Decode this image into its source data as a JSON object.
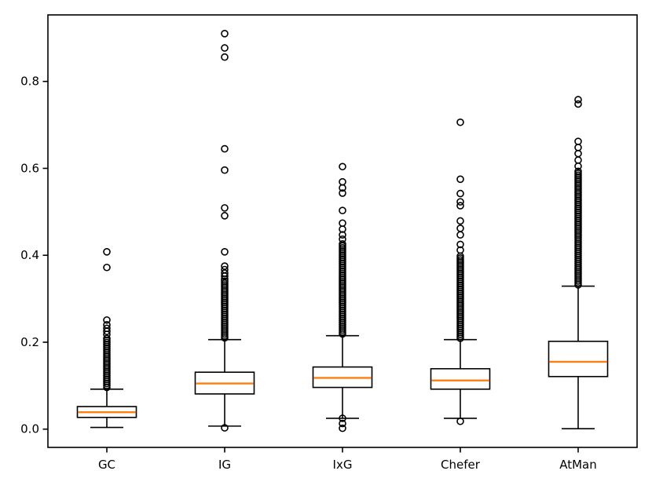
{
  "figure": {
    "background": "#ffffff",
    "line_color": "#000000",
    "median_color": "#ff7f0e",
    "box_fill": "#ffffff"
  },
  "chart_data": {
    "type": "boxplot",
    "categories": [
      "GC",
      "IG",
      "IxG",
      "Chefer",
      "AtMan"
    ],
    "y_ticks": [
      0.0,
      0.2,
      0.4,
      0.6,
      0.8
    ],
    "y_tick_labels": [
      "0.0",
      "0.2",
      "0.4",
      "0.6",
      "0.8"
    ],
    "ylim": [
      -0.042,
      0.953
    ],
    "grid": false,
    "legend": "none",
    "xlabel": "",
    "ylabel": "",
    "series": [
      {
        "name": "GC",
        "whisker_low": 0.004,
        "q1": 0.027,
        "median": 0.039,
        "q3": 0.052,
        "whisker_high": 0.092,
        "outliers_dense": {
          "from": 0.096,
          "to": 0.21,
          "step": 0.0045
        },
        "outliers_high": [
          0.218,
          0.225,
          0.232,
          0.24,
          0.251,
          0.372,
          0.408
        ],
        "outliers_low": []
      },
      {
        "name": "IG",
        "whisker_low": 0.007,
        "q1": 0.081,
        "median": 0.105,
        "q3": 0.131,
        "whisker_high": 0.206,
        "outliers_dense": {
          "from": 0.21,
          "to": 0.345,
          "step": 0.0045
        },
        "outliers_high": [
          0.352,
          0.359,
          0.367,
          0.375,
          0.408,
          0.491,
          0.509,
          0.596,
          0.645,
          0.856,
          0.877,
          0.91
        ],
        "outliers_low": [
          0.003
        ]
      },
      {
        "name": "IxG",
        "whisker_low": 0.025,
        "q1": 0.096,
        "median": 0.118,
        "q3": 0.143,
        "whisker_high": 0.215,
        "outliers_dense": {
          "from": 0.219,
          "to": 0.428,
          "step": 0.0045
        },
        "outliers_high": [
          0.437,
          0.447,
          0.46,
          0.474,
          0.503,
          0.543,
          0.555,
          0.569,
          0.604
        ],
        "outliers_low": [
          0.025,
          0.013,
          0.002
        ]
      },
      {
        "name": "Chefer",
        "whisker_low": 0.025,
        "q1": 0.092,
        "median": 0.112,
        "q3": 0.139,
        "whisker_high": 0.206,
        "outliers_dense": {
          "from": 0.209,
          "to": 0.4,
          "step": 0.0045
        },
        "outliers_high": [
          0.412,
          0.425,
          0.447,
          0.462,
          0.479,
          0.514,
          0.523,
          0.542,
          0.575,
          0.706
        ],
        "outliers_low": [
          0.018
        ]
      },
      {
        "name": "AtMan",
        "whisker_low": 0.001,
        "q1": 0.121,
        "median": 0.155,
        "q3": 0.202,
        "whisker_high": 0.329,
        "outliers_dense": {
          "from": 0.332,
          "to": 0.594,
          "step": 0.0045
        },
        "outliers_high": [
          0.605,
          0.619,
          0.634,
          0.648,
          0.662,
          0.748,
          0.758
        ],
        "outliers_low": []
      }
    ]
  }
}
